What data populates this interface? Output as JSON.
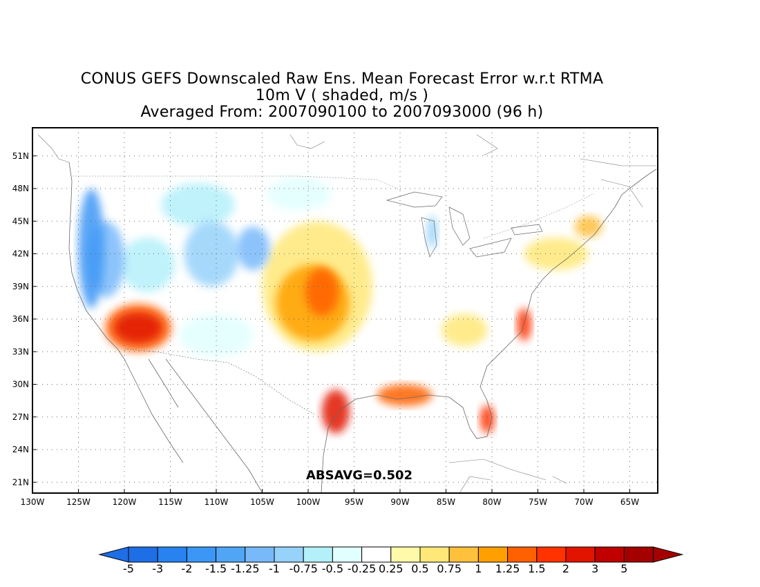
{
  "title": {
    "line1": "CONUS GEFS Downscaled Raw Ens. Mean Forecast Error w.r.t RTMA",
    "line2": "10m V ( shaded, m/s )",
    "line3": "Averaged From: 2007090100 to 2007093000 (96 h)"
  },
  "stat": "ABSAVG=0.502",
  "map": {
    "lon_range": [
      -130,
      -62
    ],
    "lat_range": [
      20,
      53
    ],
    "lon_ticks": [
      "130W",
      "125W",
      "120W",
      "115W",
      "110W",
      "105W",
      "100W",
      "95W",
      "90W",
      "85W",
      "80W",
      "75W",
      "70W",
      "65W"
    ],
    "lat_ticks": [
      "21N",
      "24N",
      "27N",
      "30N",
      "33N",
      "36N",
      "39N",
      "42N",
      "45N",
      "48N",
      "51N"
    ],
    "grid": true
  },
  "colorbar": {
    "labels": [
      "-5",
      "-3",
      "-2",
      "-1.5",
      "-1.25",
      "-1",
      "-0.75",
      "-0.5",
      "-0.25",
      "0.25",
      "0.5",
      "0.75",
      "1",
      "1.25",
      "1.5",
      "2",
      "3",
      "5"
    ],
    "colors": [
      "#1e6ee6",
      "#2882f0",
      "#3c96f5",
      "#50a5f5",
      "#78b9fa",
      "#96d2fa",
      "#b4f0fa",
      "#e1ffff",
      "#ffffff",
      "#fffaaa",
      "#ffe878",
      "#ffc03c",
      "#ffa000",
      "#ff6000",
      "#ff3200",
      "#e11400",
      "#c00000",
      "#a50000"
    ],
    "neg_arrow_color": "#1e6ee6",
    "pos_arrow_color": "#a50000"
  },
  "shaded_regions": [
    {
      "name": "pacific-nw-coast",
      "lon": -123.6,
      "lat": 42.5,
      "rx": 1.4,
      "ry": 5.5,
      "value": -2
    },
    {
      "name": "pacific-nw-inland",
      "lon": -122.0,
      "lat": 41.5,
      "rx": 2.0,
      "ry": 3.5,
      "value": -1.25
    },
    {
      "name": "nevada-blue",
      "lon": -117.5,
      "lat": 41.0,
      "rx": 3.0,
      "ry": 2.5,
      "value": -0.75
    },
    {
      "name": "utah-wyoming-blue",
      "lon": -110.5,
      "lat": 42.0,
      "rx": 3.0,
      "ry": 3.0,
      "value": -1
    },
    {
      "name": "idaho-montana-blue",
      "lon": -112.0,
      "lat": 46.5,
      "rx": 4.0,
      "ry": 2.0,
      "value": -0.75
    },
    {
      "name": "colorado-blue",
      "lon": -106.0,
      "lat": 42.5,
      "rx": 1.8,
      "ry": 2.0,
      "value": -1.25
    },
    {
      "name": "north-plains-lightblue",
      "lon": -101.0,
      "lat": 47.5,
      "rx": 3.5,
      "ry": 1.5,
      "value": -0.5
    },
    {
      "name": "southwest-lightblue",
      "lon": -110.0,
      "lat": 34.5,
      "rx": 4.0,
      "ry": 2.0,
      "value": -0.5
    },
    {
      "name": "great-lakes-blue",
      "lon": -86.5,
      "lat": 44.0,
      "rx": 0.6,
      "ry": 1.5,
      "value": -1
    },
    {
      "name": "california-red",
      "lon": -118.5,
      "lat": 35.2,
      "rx": 2.6,
      "ry": 1.4,
      "value": 2
    },
    {
      "name": "california-orange",
      "lon": -118.5,
      "lat": 35.2,
      "rx": 3.6,
      "ry": 2.2,
      "value": 1.25
    },
    {
      "name": "plains-yellow",
      "lon": -99.0,
      "lat": 39.0,
      "rx": 6.0,
      "ry": 6.0,
      "value": 0.5
    },
    {
      "name": "plains-orange",
      "lon": -99.5,
      "lat": 37.5,
      "rx": 4.0,
      "ry": 3.5,
      "value": 1
    },
    {
      "name": "plains-deep-orange",
      "lon": -98.5,
      "lat": 38.5,
      "rx": 1.8,
      "ry": 2.2,
      "value": 1.25
    },
    {
      "name": "texas-red",
      "lon": -97.0,
      "lat": 27.5,
      "rx": 1.5,
      "ry": 2.0,
      "value": 2
    },
    {
      "name": "gulf-orange",
      "lon": -89.5,
      "lat": 29.0,
      "rx": 3.0,
      "ry": 1.0,
      "value": 1.25
    },
    {
      "name": "florida-red",
      "lon": -80.5,
      "lat": 26.8,
      "rx": 0.8,
      "ry": 1.3,
      "value": 1.5
    },
    {
      "name": "carolina-red",
      "lon": -76.5,
      "lat": 35.5,
      "rx": 0.8,
      "ry": 1.5,
      "value": 1.5
    },
    {
      "name": "southeast-yellow",
      "lon": -83.0,
      "lat": 35.0,
      "rx": 2.5,
      "ry": 1.5,
      "value": 0.5
    },
    {
      "name": "northeast-yellow",
      "lon": -73.0,
      "lat": 42.0,
      "rx": 3.5,
      "ry": 1.5,
      "value": 0.5
    },
    {
      "name": "new-england-orange",
      "lon": -69.5,
      "lat": 44.5,
      "rx": 1.5,
      "ry": 1.0,
      "value": 0.75
    }
  ]
}
